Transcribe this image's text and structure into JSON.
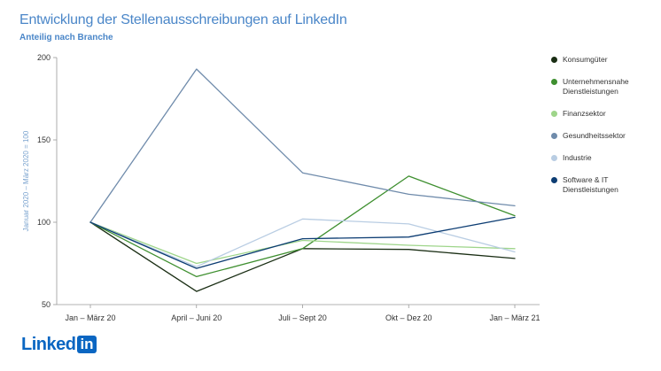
{
  "header": {
    "title": "Entwicklung der Stellenausschreibungen auf LinkedIn",
    "subtitle": "Anteilig nach Branche"
  },
  "logo": {
    "text": "Linked",
    "box": "in"
  },
  "chart_data": {
    "type": "line",
    "title": "Entwicklung der Stellenausschreibungen auf LinkedIn",
    "subtitle": "Anteilig nach Branche",
    "ylabel": "Januar 2020 – März 2020 = 100",
    "xlabel": "",
    "categories": [
      "Jan – März 20",
      "April – Juni 20",
      "Juli – Sept 20",
      "Okt – Dez 20",
      "Jan – März 21"
    ],
    "ylim": [
      50,
      200
    ],
    "yticks": [
      50,
      100,
      150,
      200
    ],
    "grid": false,
    "legend_position": "right",
    "series": [
      {
        "name": "Konsumgüter",
        "color": "#1a2e14",
        "values": [
          100,
          58,
          84,
          83.5,
          78
        ]
      },
      {
        "name": "Unternehmensnahe Dienstleistungen",
        "color": "#3e8f2f",
        "values": [
          100,
          67,
          84,
          128,
          104
        ]
      },
      {
        "name": "Finanzsektor",
        "color": "#9ed58a",
        "values": [
          100,
          75,
          89,
          86,
          84
        ]
      },
      {
        "name": "Gesundheitssektor",
        "color": "#6f8bab",
        "values": [
          100,
          193,
          130,
          117,
          110
        ]
      },
      {
        "name": "Industrie",
        "color": "#b9cde3",
        "values": [
          100,
          73,
          102,
          99,
          82
        ]
      },
      {
        "name": "Software & IT Dienstleistungen",
        "color": "#0d3d73",
        "values": [
          100,
          72,
          90,
          91,
          103
        ]
      }
    ]
  }
}
